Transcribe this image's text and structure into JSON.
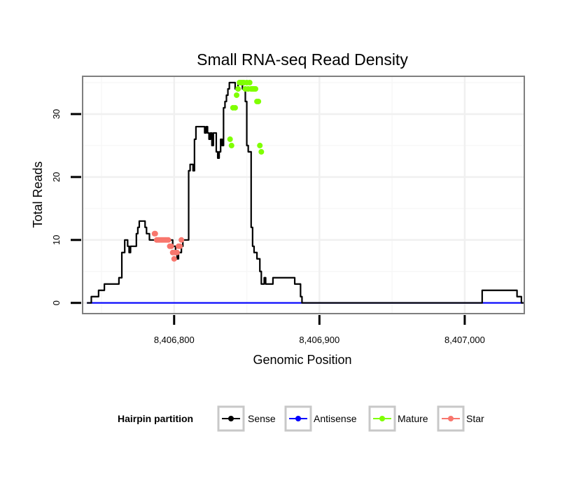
{
  "chart_data": {
    "type": "line",
    "title": "Small RNA-seq Read Density",
    "xlabel": "Genomic Position",
    "ylabel": "Total Reads",
    "xlim": [
      8406737,
      8407041
    ],
    "ylim": [
      -1.7,
      36
    ],
    "x_ticks": [
      8406800,
      8406900,
      8407000
    ],
    "x_tick_labels": [
      "8,406,800",
      "8,406,900",
      "8,407,000"
    ],
    "y_ticks": [
      0,
      10,
      20,
      30
    ],
    "y_tick_labels": [
      "0",
      "10",
      "20",
      "30"
    ],
    "grid": true,
    "legend": {
      "title": "Hairpin partition",
      "position": "bottom",
      "entries": [
        {
          "name": "Sense",
          "color": "#000000"
        },
        {
          "name": "Antisense",
          "color": "#0000ff"
        },
        {
          "name": "Mature",
          "color": "#7fff00"
        },
        {
          "name": "Star",
          "color": "#f8766d"
        }
      ]
    },
    "series": [
      {
        "name": "Sense",
        "color": "#000000",
        "style": "step",
        "points": [
          [
            8406740,
            0
          ],
          [
            8406743,
            1
          ],
          [
            8406748,
            2
          ],
          [
            8406752,
            3
          ],
          [
            8406762,
            4
          ],
          [
            8406764,
            8
          ],
          [
            8406765,
            8
          ],
          [
            8406766,
            10
          ],
          [
            8406767,
            10
          ],
          [
            8406768,
            9
          ],
          [
            8406769,
            8
          ],
          [
            8406770,
            9
          ],
          [
            8406774,
            11
          ],
          [
            8406775,
            12
          ],
          [
            8406776,
            13
          ],
          [
            8406780,
            12
          ],
          [
            8406781,
            11
          ],
          [
            8406782,
            11
          ],
          [
            8406783,
            10
          ],
          [
            8406786,
            10
          ],
          [
            8406798,
            10
          ],
          [
            8406799,
            9
          ],
          [
            8406800,
            9
          ],
          [
            8406801,
            8
          ],
          [
            8406802,
            7
          ],
          [
            8406803,
            8
          ],
          [
            8406805,
            9
          ],
          [
            8406806,
            10
          ],
          [
            8406810,
            21
          ],
          [
            8406811,
            22
          ],
          [
            8406812,
            22
          ],
          [
            8406813,
            21
          ],
          [
            8406814,
            26
          ],
          [
            8406815,
            28
          ],
          [
            8406821,
            27
          ],
          [
            8406822,
            28
          ],
          [
            8406823,
            27
          ],
          [
            8406824,
            26
          ],
          [
            8406825,
            27
          ],
          [
            8406826,
            25
          ],
          [
            8406827,
            27
          ],
          [
            8406828,
            27
          ],
          [
            8406829,
            24
          ],
          [
            8406830,
            23
          ],
          [
            8406831,
            24
          ],
          [
            8406832,
            26
          ],
          [
            8406833,
            25
          ],
          [
            8406834,
            31
          ],
          [
            8406835,
            32
          ],
          [
            8406836,
            33
          ],
          [
            8406837,
            34
          ],
          [
            8406838,
            35
          ],
          [
            8406842,
            34
          ],
          [
            8406844,
            35
          ],
          [
            8406847,
            34
          ],
          [
            8406849,
            32
          ],
          [
            8406850,
            25
          ],
          [
            8406851,
            24
          ],
          [
            8406853,
            12
          ],
          [
            8406854,
            9
          ],
          [
            8406855,
            8
          ],
          [
            8406857,
            7
          ],
          [
            8406859,
            5
          ],
          [
            8406860,
            3
          ],
          [
            8406862,
            4
          ],
          [
            8406863,
            3
          ],
          [
            8406868,
            4
          ],
          [
            8406883,
            3
          ],
          [
            8406887,
            1
          ],
          [
            8406888,
            0
          ],
          [
            8407011,
            0
          ],
          [
            8407012,
            2
          ],
          [
            8407036,
            1
          ],
          [
            8407039,
            0
          ],
          [
            8407041,
            0
          ]
        ]
      },
      {
        "name": "Antisense",
        "color": "#0000ff",
        "style": "line",
        "points": [
          [
            8406740,
            0
          ],
          [
            8407041,
            0
          ]
        ]
      },
      {
        "name": "Mature",
        "color": "#7fff00",
        "style": "points",
        "points": [
          [
            8406838.5,
            26
          ],
          [
            8406839.5,
            25
          ],
          [
            8406840.5,
            31
          ],
          [
            8406842,
            31
          ],
          [
            8406843,
            33
          ],
          [
            8406844,
            34
          ],
          [
            8406845,
            35
          ],
          [
            8406846,
            35
          ],
          [
            8406847,
            35
          ],
          [
            8406848,
            35
          ],
          [
            8406849,
            34
          ],
          [
            8406850,
            35
          ],
          [
            8406851,
            34
          ],
          [
            8406852,
            35
          ],
          [
            8406853,
            34
          ],
          [
            8406854,
            34
          ],
          [
            8406855,
            34
          ],
          [
            8406856,
            34
          ],
          [
            8406857,
            32
          ],
          [
            8406858,
            32
          ],
          [
            8406859,
            25
          ],
          [
            8406860,
            24
          ]
        ]
      },
      {
        "name": "Star",
        "color": "#f8766d",
        "style": "points",
        "points": [
          [
            8406786.5,
            11
          ],
          [
            8406787,
            11
          ],
          [
            8406788,
            10
          ],
          [
            8406789,
            10
          ],
          [
            8406790,
            10
          ],
          [
            8406791,
            10
          ],
          [
            8406792,
            10
          ],
          [
            8406793,
            10
          ],
          [
            8406794,
            10
          ],
          [
            8406795,
            10
          ],
          [
            8406796,
            10
          ],
          [
            8406797,
            9
          ],
          [
            8406798,
            9
          ],
          [
            8406799,
            8
          ],
          [
            8406800,
            7
          ],
          [
            8406801,
            8
          ],
          [
            8406802,
            8
          ],
          [
            8406803,
            9
          ],
          [
            8406804,
            9
          ],
          [
            8406805,
            10
          ]
        ]
      }
    ]
  }
}
